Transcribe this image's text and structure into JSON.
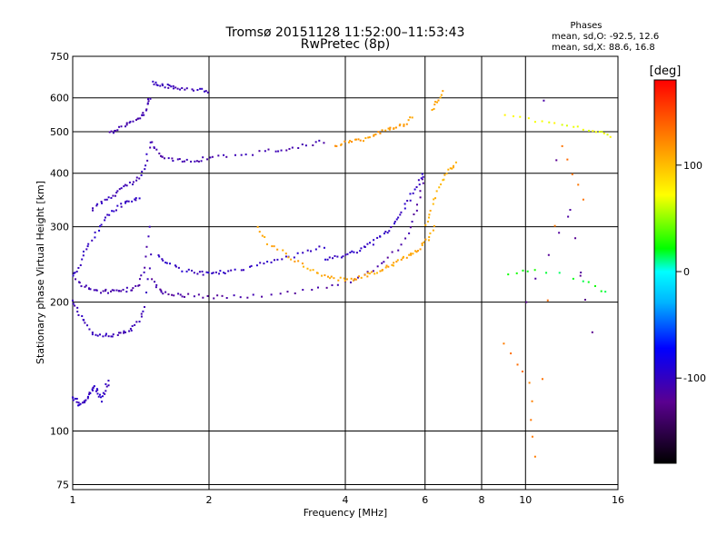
{
  "chart_data": {
    "type": "scatter",
    "title": "Tromsø 20151128 11:52:00–11:53:43",
    "subtitle": "RwPretec (8p)",
    "xlabel": "Frequency [MHz]",
    "ylabel": "Stationary phase Virtual Height [km]",
    "x_scale": "log",
    "y_scale": "log",
    "xlim": [
      1,
      16
    ],
    "ylim": [
      73,
      750
    ],
    "x_ticks": [
      1,
      2,
      4,
      6,
      8,
      10,
      16
    ],
    "y_ticks": [
      75,
      100,
      200,
      300,
      400,
      500,
      600,
      750
    ],
    "grid": true,
    "stats": {
      "title": "Phases",
      "o_line": "mean, sd,O:  -92.5, 12.6",
      "x_line": "mean, sd,X:  88.6, 16.8"
    },
    "colorbar": {
      "label": "[deg]",
      "min": -180,
      "max": 180,
      "ticks": [
        100,
        0,
        -100
      ],
      "tick_labels": [
        "100",
        "0",
        "-100"
      ]
    },
    "traces": [
      {
        "phase": -100,
        "x": [
          1.0,
          1.02,
          1.04,
          1.06,
          1.08,
          1.1,
          1.12,
          1.14,
          1.16,
          1.18,
          1.2
        ],
        "y": [
          120,
          118,
          115,
          117,
          120,
          124,
          128,
          122,
          118,
          125,
          130
        ]
      },
      {
        "phase": -105,
        "x": [
          1.0,
          1.03,
          1.06,
          1.1,
          1.15,
          1.2,
          1.25,
          1.3,
          1.35,
          1.4,
          1.45,
          1.48
        ],
        "y": [
          200,
          190,
          180,
          170,
          168,
          167,
          168,
          170,
          173,
          180,
          195,
          260
        ]
      },
      {
        "phase": -110,
        "x": [
          1.02,
          1.06,
          1.1,
          1.15,
          1.2,
          1.25,
          1.3,
          1.35,
          1.4,
          1.45,
          1.48
        ],
        "y": [
          225,
          218,
          214,
          212,
          212,
          212,
          213,
          215,
          220,
          240,
          300
        ]
      },
      {
        "phase": -100,
        "x": [
          1.0,
          1.03,
          1.06,
          1.1,
          1.15,
          1.2,
          1.25,
          1.3,
          1.35,
          1.4
        ],
        "y": [
          230,
          240,
          260,
          280,
          300,
          320,
          330,
          340,
          345,
          350
        ]
      },
      {
        "phase": -105,
        "x": [
          1.1,
          1.15,
          1.2,
          1.25,
          1.3,
          1.35,
          1.4,
          1.45,
          1.48
        ],
        "y": [
          330,
          340,
          350,
          360,
          370,
          380,
          390,
          420,
          470
        ]
      },
      {
        "phase": -110,
        "x": [
          1.2,
          1.25,
          1.3,
          1.35,
          1.4,
          1.43,
          1.46,
          1.48
        ],
        "y": [
          495,
          505,
          515,
          525,
          535,
          550,
          575,
          600
        ]
      },
      {
        "phase": -105,
        "x": [
          1.5,
          1.55,
          1.6,
          1.65,
          1.7,
          1.8,
          1.9,
          2.0
        ],
        "y": [
          650,
          645,
          640,
          635,
          630,
          628,
          625,
          622
        ]
      },
      {
        "phase": -110,
        "x": [
          1.5,
          1.55,
          1.6,
          1.7,
          1.8,
          1.9,
          2.0,
          2.2,
          2.5,
          2.8,
          3.0,
          3.3,
          3.6
        ],
        "y": [
          470,
          445,
          435,
          430,
          428,
          430,
          433,
          438,
          445,
          452,
          458,
          465,
          475
        ]
      },
      {
        "phase": -115,
        "x": [
          1.5,
          1.55,
          1.6,
          1.7,
          1.8,
          2.0,
          2.2,
          2.5,
          3.0,
          3.5,
          4.0,
          4.4,
          4.8,
          5.2,
          5.6,
          5.8,
          5.95
        ],
        "y": [
          225,
          214,
          210,
          208,
          207,
          206,
          206,
          207,
          210,
          215,
          222,
          232,
          245,
          265,
          300,
          340,
          390
        ]
      },
      {
        "phase": -100,
        "x": [
          1.55,
          1.6,
          1.7,
          1.8,
          1.9,
          2.0,
          2.1,
          2.2,
          2.4,
          2.6,
          2.8,
          3.0,
          3.3,
          3.6
        ],
        "y": [
          255,
          248,
          240,
          236,
          234,
          233,
          234,
          236,
          240,
          245,
          250,
          255,
          262,
          270
        ]
      },
      {
        "phase": -100,
        "x": [
          3.6,
          3.8,
          4.0,
          4.2,
          4.4,
          4.6,
          4.8,
          5.0,
          5.2,
          5.4,
          5.6,
          5.8,
          5.95
        ],
        "y": [
          250,
          255,
          258,
          262,
          268,
          275,
          285,
          295,
          310,
          330,
          355,
          380,
          400
        ]
      },
      {
        "phase": 110,
        "x": [
          2.55,
          2.7,
          2.9,
          3.1,
          3.3,
          3.5,
          3.7,
          3.9,
          4.1,
          4.3,
          4.5,
          4.7,
          4.9,
          5.1,
          5.3,
          5.5,
          5.7,
          5.9,
          6.1,
          6.3
        ],
        "y": [
          300,
          275,
          262,
          250,
          240,
          233,
          228,
          226,
          226,
          228,
          232,
          236,
          240,
          245,
          250,
          256,
          262,
          270,
          280,
          300
        ]
      },
      {
        "phase": 105,
        "x": [
          6.0,
          6.2,
          6.4,
          6.6,
          6.8,
          7.0
        ],
        "y": [
          300,
          330,
          360,
          390,
          410,
          420
        ]
      },
      {
        "phase": 115,
        "x": [
          3.8,
          4.0,
          4.2,
          4.4,
          4.6,
          4.8,
          5.0,
          5.2,
          5.4,
          5.6
        ],
        "y": [
          460,
          470,
          475,
          480,
          490,
          500,
          505,
          510,
          520,
          540
        ]
      },
      {
        "phase": 110,
        "x": [
          6.2,
          6.4,
          6.6
        ],
        "y": [
          560,
          590,
          620
        ]
      },
      {
        "phase": 70,
        "x": [
          9.0,
          10.5,
          12.0,
          13.5,
          14.5,
          15.5
        ],
        "y": [
          550,
          530,
          520,
          510,
          500,
          490
        ]
      },
      {
        "phase": 20,
        "x": [
          9.2,
          10.5,
          13.5,
          15.0
        ],
        "y": [
          230,
          240,
          225,
          210
        ]
      },
      {
        "phase": -120,
        "x": [
          10.0,
          12.5,
          14.0,
          11.0
        ],
        "y": [
          200,
          330,
          170,
          590
        ]
      },
      {
        "phase": 130,
        "x": [
          9.0,
          10.2,
          10.5,
          12.0,
          13.5
        ],
        "y": [
          160,
          130,
          88,
          460,
          350
        ]
      }
    ]
  }
}
